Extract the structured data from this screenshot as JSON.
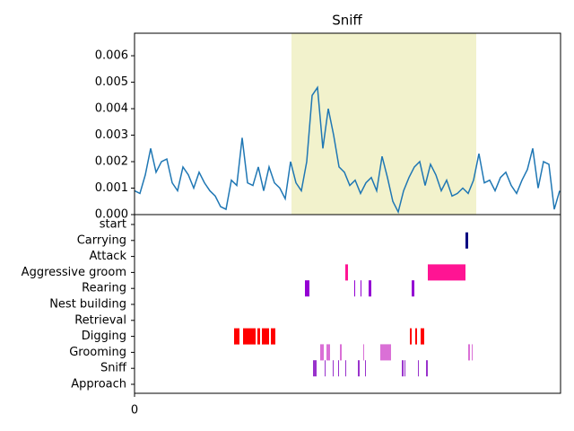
{
  "chart_data": [
    {
      "type": "line",
      "title": "Sniff",
      "xlim": [
        0,
        475
      ],
      "ylim": [
        0,
        0.00685
      ],
      "yticks": [
        {
          "value": 0,
          "label": "0.000"
        },
        0.001,
        0.002,
        0.003,
        0.004,
        0.005,
        0.006
      ],
      "span": {
        "range": [
          175,
          381
        ],
        "color": "#f2f2cc"
      },
      "x": [
        0,
        6,
        12,
        18,
        24,
        30,
        36,
        42,
        48,
        54,
        60,
        66,
        72,
        78,
        84,
        90,
        96,
        102,
        108,
        114,
        120,
        126,
        132,
        138,
        144,
        150,
        156,
        162,
        168,
        174,
        180,
        186,
        192,
        198,
        204,
        210,
        216,
        222,
        228,
        234,
        240,
        246,
        252,
        258,
        264,
        270,
        276,
        282,
        288,
        294,
        300,
        306,
        312,
        318,
        324,
        330,
        336,
        342,
        348,
        354,
        360,
        366,
        372,
        378,
        384,
        390,
        396,
        402,
        408,
        414,
        420,
        426,
        432,
        438,
        444,
        450,
        456,
        462,
        468,
        474
      ],
      "series": [
        {
          "color": "#1f77b4",
          "values": [
            0.0009,
            0.0008,
            0.0015,
            0.0025,
            0.0016,
            0.002,
            0.0021,
            0.0012,
            0.0009,
            0.0018,
            0.0015,
            0.001,
            0.0016,
            0.0012,
            0.0009,
            0.0007,
            0.0003,
            0.0002,
            0.0013,
            0.0011,
            0.0029,
            0.0012,
            0.0011,
            0.0018,
            0.0009,
            0.0018,
            0.0012,
            0.001,
            0.0006,
            0.002,
            0.0012,
            0.0009,
            0.002,
            0.0045,
            0.0048,
            0.0025,
            0.004,
            0.003,
            0.0018,
            0.0016,
            0.0011,
            0.0013,
            0.0008,
            0.0012,
            0.0014,
            0.0009,
            0.0022,
            0.0014,
            0.0005,
            0.0001,
            0.0009,
            0.0014,
            0.0018,
            0.002,
            0.0011,
            0.0019,
            0.0015,
            0.0009,
            0.0013,
            0.0007,
            0.0008,
            0.001,
            0.0008,
            0.0013,
            0.0023,
            0.0012,
            0.0013,
            0.0009,
            0.0014,
            0.0016,
            0.0011,
            0.0008,
            0.0013,
            0.0017,
            0.0025,
            0.001,
            0.002,
            0.0019,
            0.0002,
            0.0009
          ]
        }
      ]
    },
    {
      "type": "ethogram",
      "xlim": [
        0,
        475
      ],
      "xticks": [
        0
      ],
      "categories": [
        "start",
        "Carrying",
        "Attack",
        "Aggressive groom",
        "Rearing",
        "Nest building",
        "Retrieval",
        "Digging",
        "Grooming",
        "Sniff",
        "Approach"
      ],
      "series": [
        {
          "name": "start",
          "color": "#000000",
          "intervals": []
        },
        {
          "name": "Carrying",
          "color": "#000080",
          "intervals": [
            [
              369,
              372
            ]
          ]
        },
        {
          "name": "Attack",
          "color": "#000000",
          "intervals": []
        },
        {
          "name": "Aggressive groom",
          "color": "#ff1493",
          "intervals": [
            [
              235,
              238
            ],
            [
              327,
              369
            ]
          ]
        },
        {
          "name": "Rearing",
          "color": "#9400d3",
          "intervals": [
            [
              190,
              195
            ],
            [
              245,
              246
            ],
            [
              252,
              253
            ],
            [
              261,
              264
            ],
            [
              309,
              312
            ]
          ]
        },
        {
          "name": "Nest building",
          "color": "#000000",
          "intervals": []
        },
        {
          "name": "Retrieval",
          "color": "#000000",
          "intervals": []
        },
        {
          "name": "Digging",
          "color": "#ff0000",
          "intervals": [
            [
              111,
              117
            ],
            [
              121,
              135
            ],
            [
              137,
              140
            ],
            [
              142,
              150
            ],
            [
              152,
              157
            ],
            [
              307,
              309
            ],
            [
              313,
              315
            ],
            [
              319,
              323
            ]
          ]
        },
        {
          "name": "Grooming",
          "color": "#da70d6",
          "intervals": [
            [
              207,
              211
            ],
            [
              214,
              218
            ],
            [
              229,
              231
            ],
            [
              255,
              256
            ],
            [
              274,
              286
            ],
            [
              372,
              374
            ],
            [
              376,
              377
            ]
          ]
        },
        {
          "name": "Sniff",
          "color": "#9932cc",
          "intervals": [
            [
              199,
              203
            ],
            [
              212,
              213
            ],
            [
              221,
              222
            ],
            [
              227,
              228
            ],
            [
              235,
              236
            ],
            [
              249,
              251
            ],
            [
              257,
              258
            ],
            [
              298,
              300
            ],
            [
              301,
              302
            ],
            [
              316,
              317
            ],
            [
              325,
              327
            ]
          ]
        },
        {
          "name": "Approach",
          "color": "#000000",
          "intervals": []
        }
      ]
    }
  ]
}
